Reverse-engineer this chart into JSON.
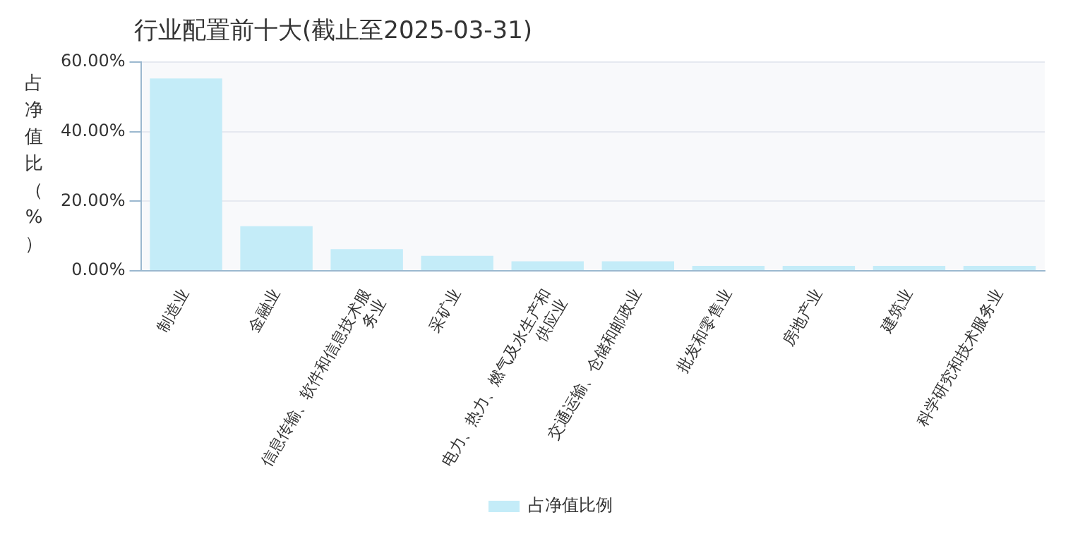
{
  "chart_data": {
    "type": "bar",
    "title": "行业配置前十大(截止至2025-03-31)",
    "ylabel": "占净值比（%）",
    "categories": [
      "制造业",
      "金融业",
      "信息传输、软件和信息技术服务业",
      "采矿业",
      "电力、热力、燃气及水生产和供应业",
      "交通运输、仓储和邮政业",
      "批发和零售业",
      "房地产业",
      "建筑业",
      "科学研究和技术服务业"
    ],
    "series": [
      {
        "name": "占净值比例",
        "color": "#c4ecf8",
        "values": [
          55.3,
          12.8,
          6.2,
          4.3,
          2.7,
          2.7,
          1.4,
          1.4,
          1.4,
          1.4
        ]
      }
    ],
    "ylim": [
      0,
      60
    ],
    "yticks": [
      {
        "value": 0,
        "label": "0.00%"
      },
      {
        "value": 20,
        "label": "20.00%"
      },
      {
        "value": 40,
        "label": "40.00%"
      },
      {
        "value": 60,
        "label": "60.00%"
      }
    ],
    "grid": "y",
    "legend": "bottom"
  }
}
